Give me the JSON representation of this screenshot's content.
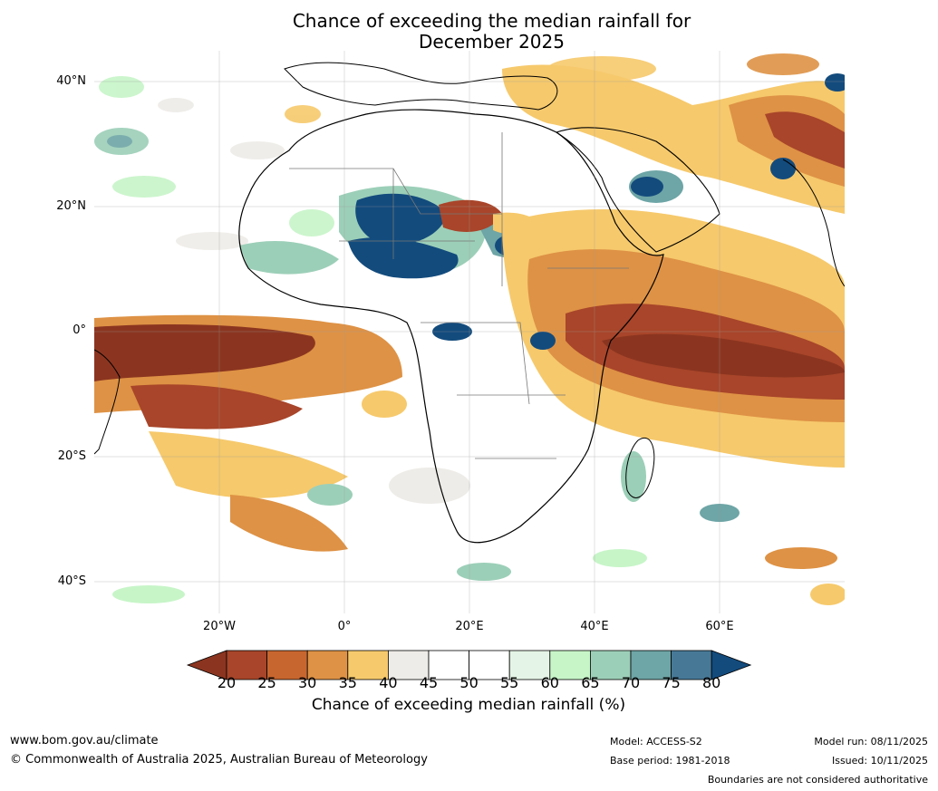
{
  "title_line1": "Chance of exceeding the median rainfall for",
  "title_line2": "December 2025",
  "lat_labels": [
    "40°N",
    "20°N",
    "0°",
    "20°S",
    "40°S"
  ],
  "lon_labels": [
    "20°W",
    "0°",
    "20°E",
    "40°E",
    "60°E"
  ],
  "colorbar": {
    "ticks": [
      "20",
      "25",
      "30",
      "35",
      "40",
      "45",
      "50",
      "55",
      "60",
      "65",
      "70",
      "75",
      "80"
    ],
    "colors": [
      "#8b3520",
      "#a8452a",
      "#c8662f",
      "#de9245",
      "#f6c96c",
      "#eeece8",
      "#ffffff",
      "#ffffff",
      "#e4f4e6",
      "#c7f5c8",
      "#9ccfb8",
      "#6ea5a6",
      "#477997",
      "#134b7d"
    ],
    "label": "Chance of exceeding median rainfall (%)"
  },
  "footer": {
    "url": "www.bom.gov.au/climate",
    "copyright": "© Commonwealth of Australia 2025, Australian Bureau of Meteorology",
    "model": "Model: ACCESS-S2",
    "base_period": "Base period: 1981-2018",
    "model_run": "Model run: 08/11/2025",
    "issued": "Issued: 10/11/2025",
    "disclaimer": "Boundaries are not considered authoritative"
  }
}
